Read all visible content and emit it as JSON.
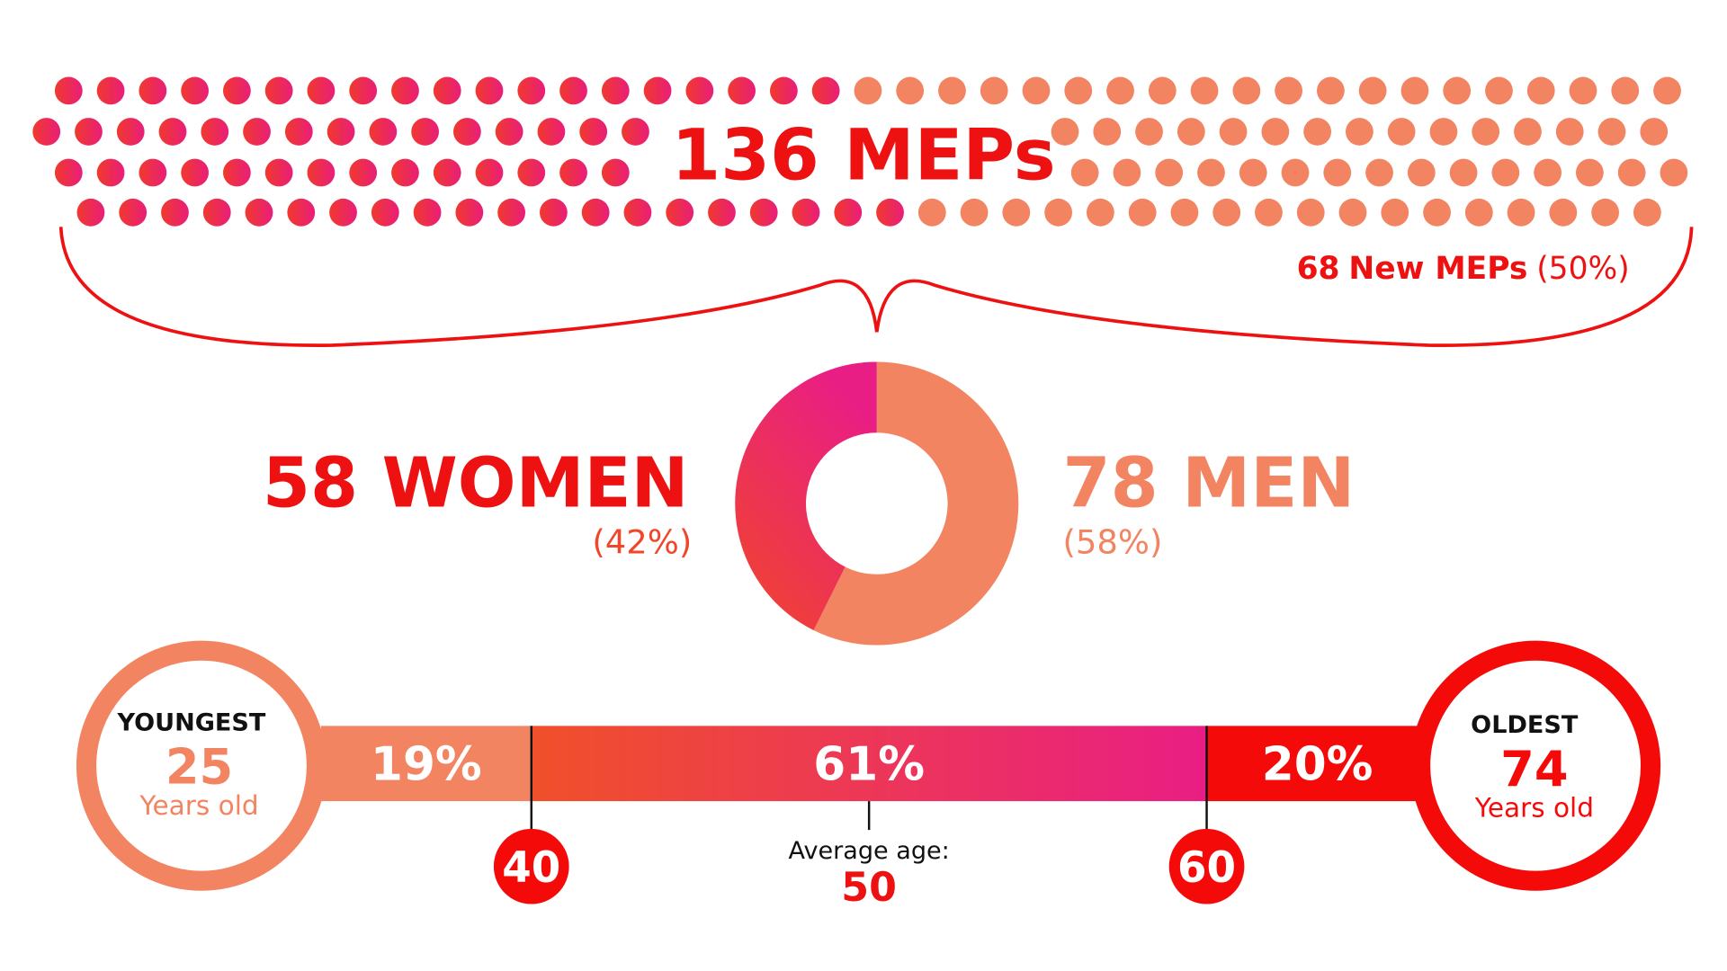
{
  "meps": {
    "total": 136,
    "title": "MEPs",
    "new": 68,
    "new_label": "New MEPs",
    "new_share": "(50%)"
  },
  "gender": {
    "women": {
      "count": 58,
      "label": "WOMEN",
      "share": "(42%)"
    },
    "men": {
      "count": 78,
      "label": "MEN",
      "share": "(58%)"
    }
  },
  "age": {
    "youngest": {
      "label": "YOUNGEST",
      "value": 25,
      "unit": "Years old"
    },
    "oldest": {
      "label": "OLDEST",
      "value": 74,
      "unit": "Years old"
    },
    "groups": {
      "values": [
        19,
        61,
        20
      ],
      "value_labels": [
        "19%",
        "61%",
        "20%"
      ]
    },
    "bounds": [
      40,
      60
    ],
    "average": {
      "label": "Average age:",
      "value": 50
    }
  }
}
